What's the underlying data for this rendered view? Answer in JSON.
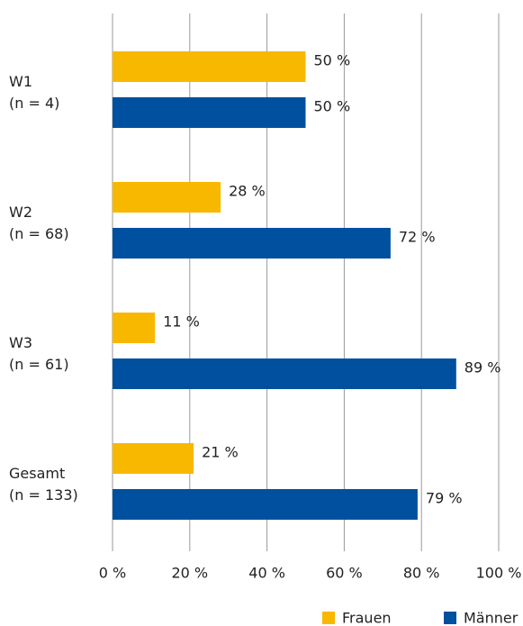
{
  "chart_data": {
    "type": "barh",
    "categories": [
      "W1\n(n = 4)",
      "W2\n(n = 68)",
      "W3\n(n = 61)",
      "Gesamt\n(n = 133)"
    ],
    "series": [
      {
        "name": "Frauen",
        "color": "#f8b800",
        "values": [
          50,
          28,
          11,
          21
        ],
        "value_labels": [
          "50 %",
          "28 %",
          "11 %",
          "21 %"
        ]
      },
      {
        "name": "Männer",
        "color": "#0050a0",
        "values": [
          50,
          72,
          89,
          79
        ],
        "value_labels": [
          "50 %",
          "72 %",
          "89 %",
          "79 %"
        ]
      }
    ],
    "xlim": [
      0,
      100
    ],
    "xticks": [
      {
        "value": 0,
        "label": "0 %"
      },
      {
        "value": 20,
        "label": "20 %"
      },
      {
        "value": 40,
        "label": "40 %"
      },
      {
        "value": 60,
        "label": "60 %"
      },
      {
        "value": 80,
        "label": "80 %"
      },
      {
        "value": 100,
        "label": "100 %"
      }
    ],
    "grid": true,
    "legend": "bottom-right"
  }
}
